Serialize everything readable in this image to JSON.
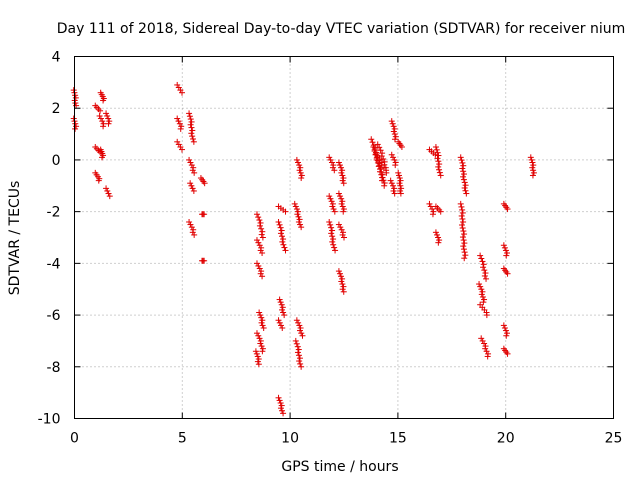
{
  "chart_data": {
    "type": "scatter",
    "title": "Day 111 of 2018, Sidereal Day-to-day VTEC variation (SDTVAR) for receiver nium",
    "xlabel": "GPS time / hours",
    "ylabel": "SDTVAR / TECUs",
    "xlim": [
      0,
      25
    ],
    "ylim": [
      -10,
      4
    ],
    "xticks": [
      0,
      5,
      10,
      15,
      20,
      25
    ],
    "yticks": [
      -10,
      -8,
      -6,
      -4,
      -2,
      0,
      2,
      4
    ],
    "grid": true,
    "marker": "+",
    "color": "#e00000",
    "tracks": [
      {
        "t0": 0.0,
        "t1": 0.05,
        "y0": 2.7,
        "y1": 2.1
      },
      {
        "t0": 0.0,
        "t1": 0.05,
        "y0": 1.6,
        "y1": 1.2
      },
      {
        "t0": 1.0,
        "t1": 1.15,
        "y0": 2.1,
        "y1": 1.9
      },
      {
        "t0": 1.0,
        "t1": 1.15,
        "y0": 0.5,
        "y1": 0.3
      },
      {
        "t0": 1.0,
        "t1": 1.15,
        "y0": -0.5,
        "y1": -0.8
      },
      {
        "t0": 1.25,
        "t1": 1.35,
        "y0": 2.6,
        "y1": 2.3
      },
      {
        "t0": 1.2,
        "t1": 1.35,
        "y0": 1.7,
        "y1": 1.3
      },
      {
        "t0": 1.25,
        "t1": 1.3,
        "y0": 0.4,
        "y1": 0.1
      },
      {
        "t0": 1.5,
        "t1": 1.6,
        "y0": 1.8,
        "y1": 1.4
      },
      {
        "t0": 1.5,
        "t1": 1.6,
        "y0": -1.1,
        "y1": -1.4
      },
      {
        "t0": 4.8,
        "t1": 4.95,
        "y0": 2.9,
        "y1": 2.6
      },
      {
        "t0": 4.8,
        "t1": 4.95,
        "y0": 1.6,
        "y1": 1.2
      },
      {
        "t0": 4.8,
        "t1": 4.95,
        "y0": 0.7,
        "y1": 0.4
      },
      {
        "t0": 5.35,
        "t1": 5.5,
        "y0": 1.8,
        "y1": 0.7
      },
      {
        "t0": 5.35,
        "t1": 5.55,
        "y0": 0.0,
        "y1": -0.5
      },
      {
        "t0": 5.4,
        "t1": 5.5,
        "y0": -0.9,
        "y1": -1.2
      },
      {
        "t0": 5.35,
        "t1": 5.55,
        "y0": -2.4,
        "y1": -2.9
      },
      {
        "t0": 5.9,
        "t1": 6.0,
        "y0": -0.7,
        "y1": -0.9
      },
      {
        "t0": 5.95,
        "t1": 6.0,
        "y0": -2.1,
        "y1": -2.1
      },
      {
        "t0": 5.95,
        "t1": 6.0,
        "y0": -3.9,
        "y1": -3.9
      },
      {
        "t0": 8.5,
        "t1": 8.75,
        "y0": -2.1,
        "y1": -3.0
      },
      {
        "t0": 8.5,
        "t1": 8.7,
        "y0": -3.1,
        "y1": -3.6
      },
      {
        "t0": 8.5,
        "t1": 8.7,
        "y0": -4.0,
        "y1": -4.5
      },
      {
        "t0": 8.6,
        "t1": 8.75,
        "y0": -5.9,
        "y1": -6.5
      },
      {
        "t0": 8.5,
        "t1": 8.75,
        "y0": -6.7,
        "y1": -7.4
      },
      {
        "t0": 8.45,
        "t1": 8.55,
        "y0": -7.4,
        "y1": -7.9
      },
      {
        "t0": 9.5,
        "t1": 9.75,
        "y0": -1.8,
        "y1": -2.0
      },
      {
        "t0": 9.5,
        "t1": 9.75,
        "y0": -2.4,
        "y1": -3.5
      },
      {
        "t0": 9.55,
        "t1": 9.7,
        "y0": -5.4,
        "y1": -6.0
      },
      {
        "t0": 9.5,
        "t1": 9.6,
        "y0": -6.2,
        "y1": -6.5
      },
      {
        "t0": 9.5,
        "t1": 9.65,
        "y0": -9.2,
        "y1": -9.8
      },
      {
        "t0": 10.25,
        "t1": 10.5,
        "y0": -1.7,
        "y1": -2.6
      },
      {
        "t0": 10.35,
        "t1": 10.55,
        "y0": 0.0,
        "y1": -0.7
      },
      {
        "t0": 10.35,
        "t1": 10.55,
        "y0": -6.2,
        "y1": -6.8
      },
      {
        "t0": 10.3,
        "t1": 10.5,
        "y0": -7.0,
        "y1": -8.0
      },
      {
        "t0": 11.85,
        "t1": 12.05,
        "y0": 0.1,
        "y1": -0.4
      },
      {
        "t0": 11.85,
        "t1": 12.05,
        "y0": -1.4,
        "y1": -2.0
      },
      {
        "t0": 11.85,
        "t1": 12.05,
        "y0": -2.4,
        "y1": -3.5
      },
      {
        "t0": 12.3,
        "t1": 12.5,
        "y0": -0.1,
        "y1": -0.9
      },
      {
        "t0": 12.3,
        "t1": 12.5,
        "y0": -1.3,
        "y1": -2.0
      },
      {
        "t0": 12.3,
        "t1": 12.5,
        "y0": -2.5,
        "y1": -3.0
      },
      {
        "t0": 12.3,
        "t1": 12.5,
        "y0": -4.3,
        "y1": -5.1
      },
      {
        "t0": 13.8,
        "t1": 14.3,
        "y0": 0.8,
        "y1": -0.8
      },
      {
        "t0": 13.9,
        "t1": 14.4,
        "y0": 0.5,
        "y1": -1.0
      },
      {
        "t0": 14.0,
        "t1": 14.5,
        "y0": 0.2,
        "y1": -0.5
      },
      {
        "t0": 14.1,
        "t1": 14.45,
        "y0": 0.6,
        "y1": -0.3
      },
      {
        "t0": 14.75,
        "t1": 14.9,
        "y0": 1.5,
        "y1": 0.8
      },
      {
        "t0": 14.75,
        "t1": 14.9,
        "y0": 0.2,
        "y1": -0.2
      },
      {
        "t0": 14.7,
        "t1": 14.85,
        "y0": -0.8,
        "y1": -1.3
      },
      {
        "t0": 15.05,
        "t1": 15.15,
        "y0": 0.7,
        "y1": 0.5
      },
      {
        "t0": 15.05,
        "t1": 15.15,
        "y0": -0.5,
        "y1": -1.3
      },
      {
        "t0": 16.5,
        "t1": 16.7,
        "y0": 0.4,
        "y1": 0.2
      },
      {
        "t0": 16.5,
        "t1": 16.65,
        "y0": -1.7,
        "y1": -2.1
      },
      {
        "t0": 16.8,
        "t1": 16.95,
        "y0": 0.5,
        "y1": -0.6
      },
      {
        "t0": 16.8,
        "t1": 16.95,
        "y0": -1.8,
        "y1": -2.0
      },
      {
        "t0": 16.8,
        "t1": 16.9,
        "y0": -2.8,
        "y1": -3.2
      },
      {
        "t0": 17.95,
        "t1": 18.15,
        "y0": 0.1,
        "y1": -1.3
      },
      {
        "t0": 17.95,
        "t1": 18.1,
        "y0": -1.7,
        "y1": -3.8
      },
      {
        "t0": 18.85,
        "t1": 19.1,
        "y0": -3.7,
        "y1": -4.6
      },
      {
        "t0": 18.8,
        "t1": 19.0,
        "y0": -4.8,
        "y1": -5.5
      },
      {
        "t0": 18.85,
        "t1": 19.15,
        "y0": -5.6,
        "y1": -6.0
      },
      {
        "t0": 18.9,
        "t1": 19.2,
        "y0": -6.9,
        "y1": -7.6
      },
      {
        "t0": 19.95,
        "t1": 20.05,
        "y0": -1.7,
        "y1": -1.9
      },
      {
        "t0": 19.95,
        "t1": 20.05,
        "y0": -3.3,
        "y1": -3.7
      },
      {
        "t0": 19.95,
        "t1": 20.05,
        "y0": -4.2,
        "y1": -4.4
      },
      {
        "t0": 19.95,
        "t1": 20.05,
        "y0": -6.4,
        "y1": -6.8
      },
      {
        "t0": 19.95,
        "t1": 20.05,
        "y0": -7.3,
        "y1": -7.5
      },
      {
        "t0": 21.2,
        "t1": 21.3,
        "y0": 0.1,
        "y1": -0.6
      }
    ]
  }
}
